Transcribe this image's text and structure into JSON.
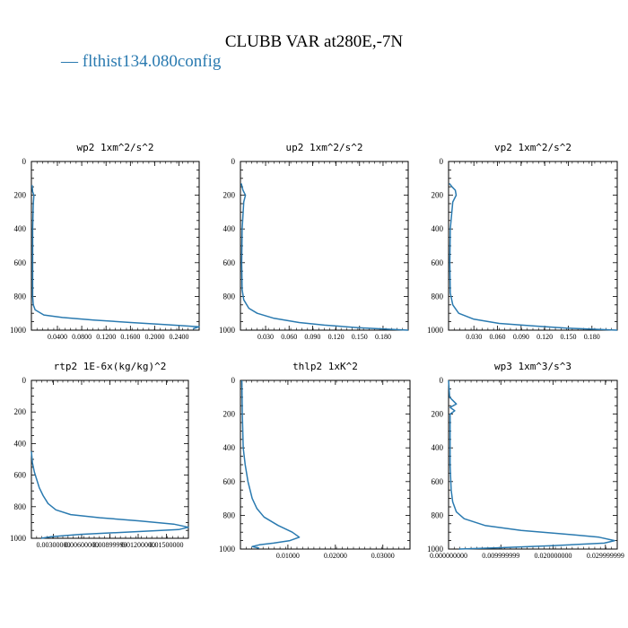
{
  "title": "CLUBB VAR at280E,-7N",
  "legend": {
    "marker": "—",
    "label": "flthist134.080config",
    "color": "#2a7ab0"
  },
  "chart_data": [
    {
      "type": "line",
      "title": "wp2   1xm^2/s^2",
      "yticks": [
        "0",
        "200",
        "400",
        "600",
        "800",
        "1000"
      ],
      "xticks": [
        "0.0400",
        "0.0800",
        "0.1200",
        "0.1600",
        "0.2000",
        "0.2400"
      ],
      "xlim": [
        0,
        0.27
      ],
      "ylim": [
        1000,
        0
      ],
      "series": [
        {
          "x": [
            0.001,
            0.002,
            0.004,
            0.003,
            0.002,
            0.002,
            0.002,
            0.003,
            0.006,
            0.02,
            0.05,
            0.1,
            0.16,
            0.22,
            0.27,
            0.26
          ],
          "y": [
            140,
            180,
            200,
            250,
            400,
            600,
            800,
            850,
            880,
            910,
            925,
            940,
            955,
            968,
            980,
            992
          ]
        }
      ]
    },
    {
      "type": "line",
      "title": "up2   1xm^2/s^2",
      "yticks": [
        "0",
        "200",
        "400",
        "600",
        "800",
        "1000"
      ],
      "xticks": [
        "0.030",
        "0.060",
        "0.090",
        "0.120",
        "0.150",
        "0.180"
      ],
      "xlim": [
        0,
        0.2
      ],
      "ylim": [
        1000,
        0
      ],
      "series": [
        {
          "x": [
            0.001,
            0.003,
            0.006,
            0.004,
            0.002,
            0.0015,
            0.002,
            0.004,
            0.01,
            0.02,
            0.04,
            0.07,
            0.1,
            0.14,
            0.18,
            0.2
          ],
          "y": [
            130,
            170,
            200,
            240,
            400,
            600,
            760,
            820,
            870,
            900,
            930,
            955,
            970,
            985,
            995,
            1000
          ]
        }
      ]
    },
    {
      "type": "line",
      "title": "vp2   1xm^2/s^2",
      "yticks": [
        "0",
        "200",
        "400",
        "600",
        "800",
        "1000"
      ],
      "xticks": [
        "0.030",
        "0.060",
        "0.090",
        "0.120",
        "0.150",
        "0.180"
      ],
      "xlim": [
        0,
        0.2
      ],
      "ylim": [
        1000,
        0
      ],
      "series": [
        {
          "x": [
            0.001,
            0.004,
            0.008,
            0.009,
            0.005,
            0.002,
            0.0015,
            0.002,
            0.005,
            0.012,
            0.03,
            0.06,
            0.1,
            0.14,
            0.18,
            0.2
          ],
          "y": [
            130,
            150,
            170,
            200,
            240,
            400,
            600,
            780,
            850,
            900,
            935,
            960,
            975,
            988,
            996,
            1000
          ]
        }
      ]
    },
    {
      "type": "line",
      "title": "rtp2   1E-6x(kg/kg)^2",
      "yticks": [
        "0",
        "200",
        "400",
        "600",
        "800",
        "1000"
      ],
      "xticks": [
        "0.00300000",
        "0.00600000",
        "0.00899999",
        "0.01200000",
        "0.01500000",
        ""
      ],
      "xlim": [
        0,
        0.016
      ],
      "ylim": [
        1000,
        0
      ],
      "series": [
        {
          "x": [
            0.0,
            0.0001,
            0.0003,
            0.0005,
            0.0008,
            0.0012,
            0.0017,
            0.0025,
            0.004,
            0.007,
            0.011,
            0.0145,
            0.016,
            0.015,
            0.01,
            0.005,
            0.002,
            0.001
          ],
          "y": [
            450,
            520,
            580,
            620,
            680,
            730,
            780,
            820,
            850,
            870,
            890,
            910,
            930,
            945,
            960,
            975,
            990,
            1000
          ]
        }
      ]
    },
    {
      "type": "line",
      "title": "thlp2   1xK^2",
      "yticks": [
        "0",
        "200",
        "400",
        "600",
        "800",
        "1000"
      ],
      "xticks": [
        "0.01000",
        "0.02000",
        "0.03000"
      ],
      "xlim": [
        0,
        0.036
      ],
      "ylim": [
        1000,
        0
      ],
      "series": [
        {
          "x": [
            0.0003,
            0.0004,
            0.0006,
            0.001,
            0.0016,
            0.0025,
            0.0035,
            0.005,
            0.008,
            0.011,
            0.0125,
            0.0105,
            0.007,
            0.004,
            0.0025,
            0.004
          ],
          "y": [
            0,
            200,
            400,
            500,
            600,
            700,
            760,
            810,
            860,
            900,
            930,
            950,
            965,
            975,
            985,
            995
          ]
        }
      ]
    },
    {
      "type": "line",
      "title": "wp3   1xm^3/s^3",
      "yticks": [
        "0",
        "200",
        "400",
        "600",
        "800",
        "1000"
      ],
      "xticks": [
        "0.000000000",
        "0.009999999",
        "0.020000000",
        "0.029999999"
      ],
      "xlim": [
        0,
        0.0325
      ],
      "ylim": [
        1000,
        0
      ],
      "series": [
        {
          "x": [
            0.0,
            0.0002,
            0.0015,
            0.0003,
            0.0012,
            0.0003,
            0.0003,
            0.0005,
            0.0008,
            0.0015,
            0.003,
            0.007,
            0.014,
            0.022,
            0.029,
            0.032,
            0.03,
            0.02,
            0.01,
            0.002
          ],
          "y": [
            0,
            100,
            140,
            160,
            180,
            200,
            500,
            650,
            720,
            780,
            820,
            860,
            890,
            910,
            930,
            950,
            965,
            980,
            992,
            1000
          ]
        }
      ]
    }
  ]
}
